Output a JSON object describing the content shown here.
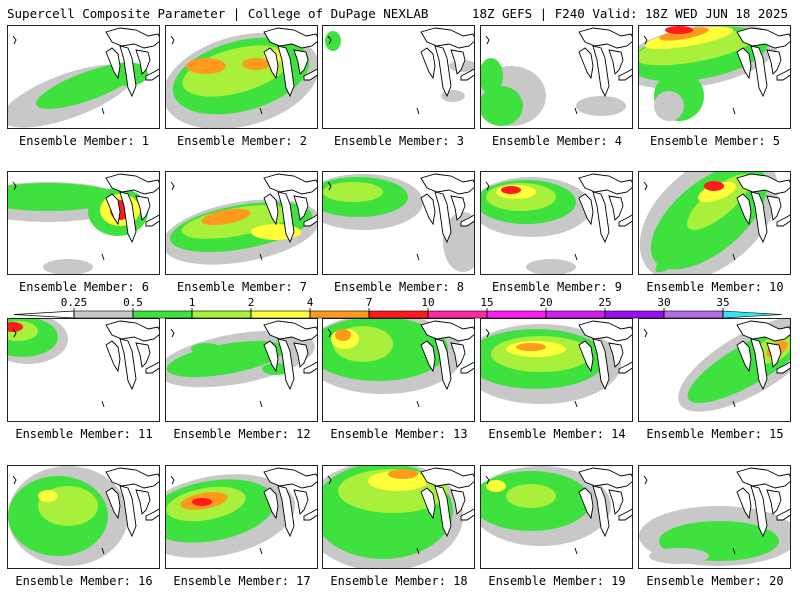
{
  "header": {
    "title_left": "Supercell Composite Parameter | College of DuPage NEXLAB",
    "title_right": "18Z GEFS | F240 Valid: 18Z WED JUN 18 2025"
  },
  "colorbar": {
    "levels": [
      "0.25",
      "0.5",
      "1",
      "2",
      "4",
      "7",
      "10",
      "15",
      "20",
      "25",
      "30",
      "35"
    ],
    "colors": [
      "#c8c8c8",
      "#3fe13f",
      "#a8f03c",
      "#ffff3a",
      "#ff9a1e",
      "#ff1b1b",
      "#ff2aa0",
      "#ff1ef0",
      "#d01ef0",
      "#9a11ef",
      "#b36ee6",
      "#33e3ee"
    ]
  },
  "members": [
    {
      "label": "Ensemble Member: 1"
    },
    {
      "label": "Ensemble Member: 2"
    },
    {
      "label": "Ensemble Member: 3"
    },
    {
      "label": "Ensemble Member: 4"
    },
    {
      "label": "Ensemble Member: 5"
    },
    {
      "label": "Ensemble Member: 6"
    },
    {
      "label": "Ensemble Member: 7"
    },
    {
      "label": "Ensemble Member: 8"
    },
    {
      "label": "Ensemble Member: 9"
    },
    {
      "label": "Ensemble Member: 10"
    },
    {
      "label": "Ensemble Member: 11"
    },
    {
      "label": "Ensemble Member: 12"
    },
    {
      "label": "Ensemble Member: 13"
    },
    {
      "label": "Ensemble Member: 14"
    },
    {
      "label": "Ensemble Member: 15"
    },
    {
      "label": "Ensemble Member: 16"
    },
    {
      "label": "Ensemble Member: 17"
    },
    {
      "label": "Ensemble Member: 18"
    },
    {
      "label": "Ensemble Member: 19"
    },
    {
      "label": "Ensemble Member: 20"
    }
  ]
}
